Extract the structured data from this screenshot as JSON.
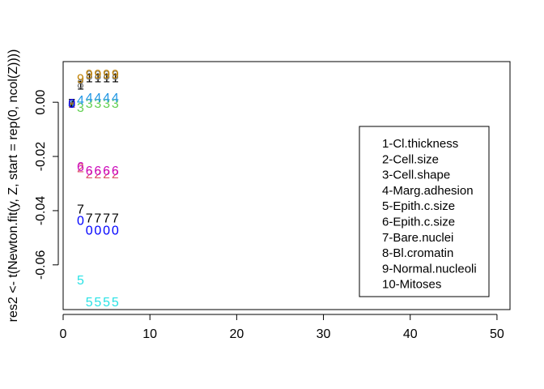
{
  "chart_data": {
    "type": "scatter",
    "title": "",
    "xlabel": "",
    "ylabel": "res2 <- t(Newton.fit(y, Z, start = rep(0, ncol(Z))))",
    "xlim": [
      0,
      51.5
    ],
    "ylim": [
      -0.0765,
      0.015
    ],
    "x_ticks": [
      0,
      10,
      20,
      30,
      40,
      50
    ],
    "x_tick_labels": [
      "0",
      "10",
      "20",
      "30",
      "40",
      "50"
    ],
    "y_ticks": [
      0.0,
      -0.02,
      -0.04,
      -0.06
    ],
    "y_tick_labels": [
      "0.00",
      "-0.02",
      "-0.04",
      "-0.06"
    ],
    "grid": false,
    "legend_position": "right",
    "legend": [
      "1-Cl.thickness",
      "2-Cell.size",
      "3-Cell.shape",
      "4-Marg.adhesion",
      "5-Epith.c.size",
      "6-Epith.c.size",
      "7-Bare.nuclei",
      "8-Bl.cromatin",
      "9-Normal.nucleoli",
      "10-Mitoses"
    ],
    "series": [
      {
        "label": "1",
        "color": "#000000",
        "x": [
          1,
          2,
          3,
          4,
          5,
          6
        ],
        "y": [
          -0.0003,
          0.0065,
          0.0092,
          0.0092,
          0.0092,
          0.0092
        ]
      },
      {
        "label": "2",
        "color": "#DF536B",
        "x": [
          1,
          2,
          3,
          4,
          5,
          6
        ],
        "y": [
          -0.0003,
          -0.024,
          -0.0262,
          -0.0262,
          -0.0262,
          -0.0262
        ]
      },
      {
        "label": "3",
        "color": "#61D04F",
        "x": [
          1,
          2,
          3,
          4,
          5,
          6
        ],
        "y": [
          -0.0003,
          -0.0017,
          -0.0003,
          -0.0003,
          -0.0003,
          -0.0003
        ]
      },
      {
        "label": "4",
        "color": "#2297E6",
        "x": [
          1,
          2,
          3,
          4,
          5,
          6
        ],
        "y": [
          -0.0003,
          0.001,
          0.0018,
          0.0018,
          0.0018,
          0.0018
        ]
      },
      {
        "label": "5",
        "color": "#28E2E5",
        "x": [
          1,
          2,
          3,
          4,
          5,
          6
        ],
        "y": [
          -0.0003,
          -0.0655,
          -0.0735,
          -0.0735,
          -0.0735,
          -0.0735
        ]
      },
      {
        "label": "6",
        "color": "#CD0BBC",
        "x": [
          1,
          2,
          3,
          4,
          5,
          6
        ],
        "y": [
          -0.0003,
          -0.0235,
          -0.025,
          -0.025,
          -0.025,
          -0.025
        ]
      },
      {
        "label": "7",
        "color": "#000000",
        "x": [
          1,
          2,
          3,
          4,
          5,
          6
        ],
        "y": [
          -0.0003,
          -0.0393,
          -0.0425,
          -0.0425,
          -0.0425,
          -0.0425
        ]
      },
      {
        "label": "8",
        "color": "#808080",
        "x": [
          1,
          2,
          3,
          4,
          5,
          6
        ],
        "y": [
          -0.0003,
          0.007,
          0.01,
          0.01,
          0.01,
          0.01
        ]
      },
      {
        "label": "9",
        "color": "#C08000",
        "x": [
          1,
          2,
          3,
          4,
          5,
          6
        ],
        "y": [
          -0.0003,
          0.0088,
          0.0105,
          0.0105,
          0.0105,
          0.0105
        ]
      },
      {
        "label": "0",
        "color": "#0000FF",
        "x": [
          1,
          2,
          3,
          4,
          5,
          6
        ],
        "y": [
          -0.0003,
          -0.0435,
          -0.047,
          -0.047,
          -0.047,
          -0.047
        ]
      }
    ]
  }
}
